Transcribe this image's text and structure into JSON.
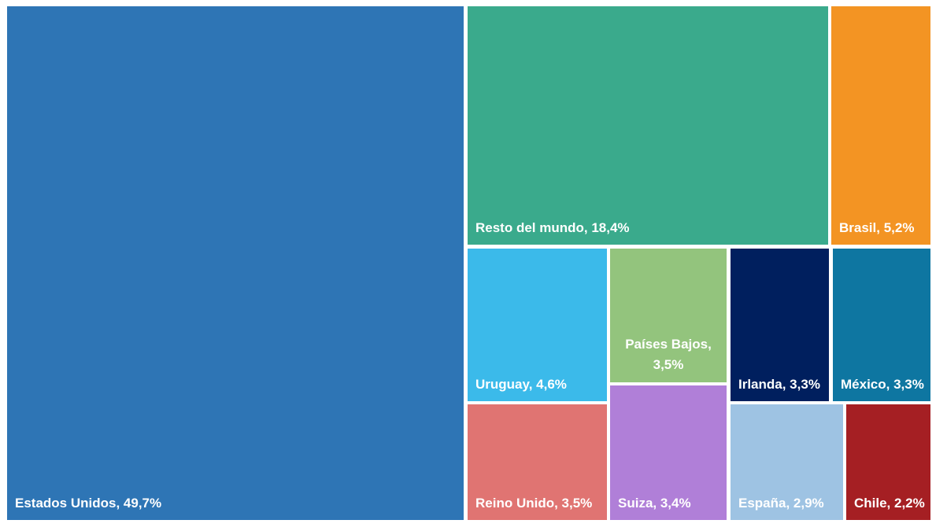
{
  "chart_data": {
    "type": "treemap",
    "title": "",
    "items": [
      {
        "name": "Estados Unidos",
        "value": 49.7,
        "label": "Estados Unidos, 49,7%",
        "color": "#2E75B5"
      },
      {
        "name": "Resto del mundo",
        "value": 18.4,
        "label": "Resto del mundo, 18,4%",
        "color": "#3AAA8C"
      },
      {
        "name": "Brasil",
        "value": 5.2,
        "label": "Brasil, 5,2%",
        "color": "#F39423"
      },
      {
        "name": "Uruguay",
        "value": 4.6,
        "label": "Uruguay, 4,6%",
        "color": "#3BBAEA"
      },
      {
        "name": "Países Bajos",
        "value": 3.5,
        "label": "Países Bajos, 3,5%",
        "color": "#93C47D"
      },
      {
        "name": "Irlanda",
        "value": 3.3,
        "label": "Irlanda, 3,3%",
        "color": "#001F5E"
      },
      {
        "name": "México",
        "value": 3.3,
        "label": "México, 3,3%",
        "color": "#0E76A1"
      },
      {
        "name": "Reino Unido",
        "value": 3.5,
        "label": "Reino Unido, 3,5%",
        "color": "#E07472"
      },
      {
        "name": "Suiza",
        "value": 3.4,
        "label": "Suiza, 3,4%",
        "color": "#B07FD8"
      },
      {
        "name": "España",
        "value": 2.9,
        "label": "España, 2,9%",
        "color": "#9EC3E3"
      },
      {
        "name": "Chile",
        "value": 2.2,
        "label": "Chile, 2,2%",
        "color": "#A51F23"
      }
    ]
  }
}
